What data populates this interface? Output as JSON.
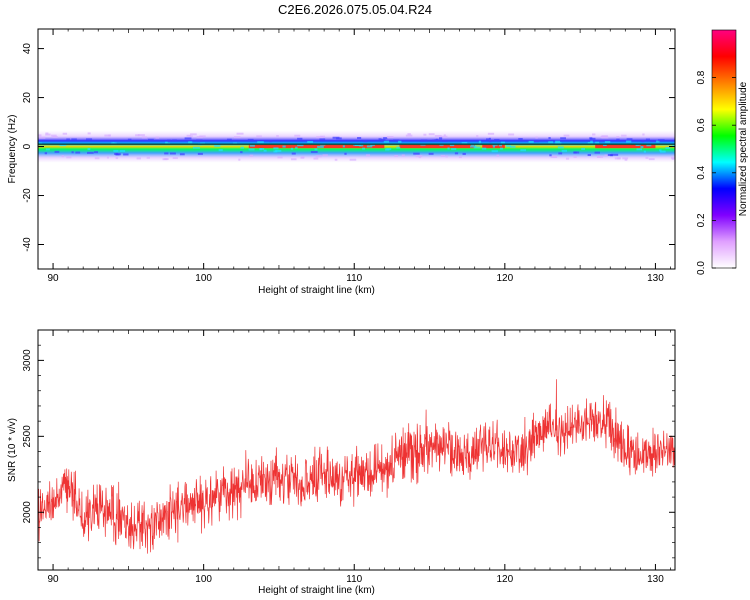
{
  "title": "C2E6.2026.075.05.04.R24",
  "chart_data": [
    {
      "type": "heatmap",
      "xlabel": "Height of straight line (km)",
      "ylabel": "Frequency (Hz)",
      "xlim": [
        89,
        131.3
      ],
      "ylim": [
        -50,
        48
      ],
      "xticks": [
        90,
        100,
        110,
        120,
        130
      ],
      "yticks": [
        40,
        20,
        0,
        -20,
        -40
      ],
      "xtick_labels": [
        "90",
        "100",
        "110",
        "120",
        "130"
      ],
      "ytick_labels": [
        "40",
        "20",
        "0",
        "-20",
        "-40"
      ],
      "band_center_hz": 0,
      "band_halfwidth_hz": 3,
      "line_hz": 1,
      "grid": false,
      "colorbar": {
        "label": "Normalized spectral amplitude",
        "range": [
          0,
          1
        ],
        "ticks": [
          0.0,
          0.2,
          0.4,
          0.6,
          0.8
        ],
        "tick_labels": [
          "0.0",
          "0.2",
          "0.4",
          "0.6",
          "0.8"
        ],
        "colormap": [
          "#ffffff",
          "#e0a0ff",
          "#8000ff",
          "#0000ff",
          "#00ffff",
          "#00ff00",
          "#ffff00",
          "#ff8000",
          "#ff0000",
          "#ff0080"
        ]
      }
    },
    {
      "type": "line",
      "xlabel": "Height of straight line (km)",
      "ylabel": "SNR (10 * v/v)",
      "xlim": [
        89,
        131.3
      ],
      "ylim": [
        1620,
        3200
      ],
      "xticks": [
        90,
        100,
        110,
        120,
        130
      ],
      "yticks": [
        2000,
        2500,
        3000
      ],
      "xtick_labels": [
        "90",
        "100",
        "110",
        "120",
        "130"
      ],
      "ytick_labels": [
        "2000",
        "2500",
        "3000"
      ],
      "series_color": "#ee3333",
      "grid": false,
      "x": [
        89,
        90,
        91,
        92,
        93,
        94,
        95,
        96,
        97,
        98,
        99,
        100,
        101,
        102,
        103,
        104,
        105,
        106,
        107,
        108,
        109,
        110,
        111,
        112,
        113,
        114,
        115,
        116,
        117,
        118,
        119,
        120,
        121,
        122,
        123,
        124,
        125,
        126,
        127,
        128,
        129,
        130,
        131.3
      ],
      "y": [
        1980,
        2050,
        2180,
        1950,
        2050,
        2000,
        1880,
        1900,
        1950,
        2000,
        2050,
        2080,
        2100,
        2150,
        2180,
        2200,
        2220,
        2180,
        2200,
        2250,
        2200,
        2250,
        2250,
        2300,
        2350,
        2400,
        2430,
        2450,
        2350,
        2380,
        2450,
        2400,
        2400,
        2500,
        2550,
        2520,
        2600,
        2620,
        2600,
        2400,
        2350,
        2400,
        2450
      ],
      "noise_amplitude": 110
    }
  ]
}
